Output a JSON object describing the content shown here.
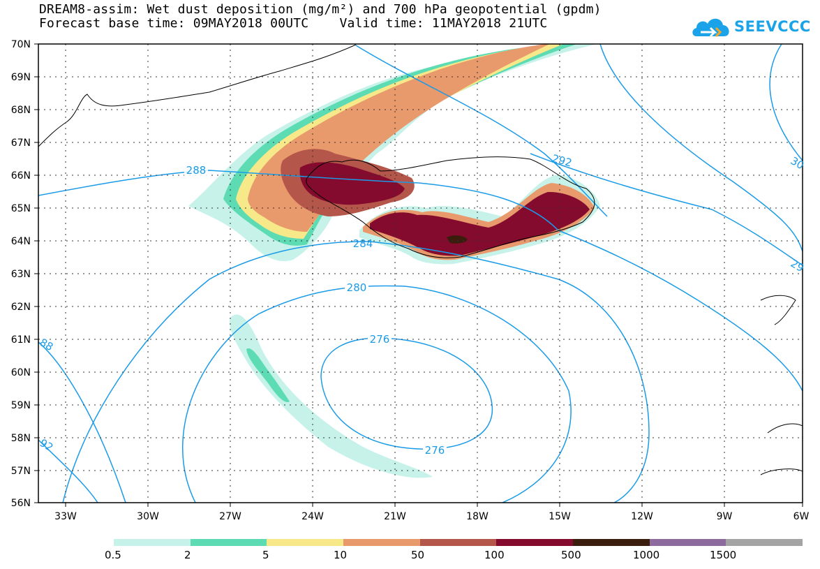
{
  "title_line1": "DREAM8-assim: Wet dust deposition (mg/m²) and 700 hPa geopotential (gpdm)",
  "title_line2": "Forecast base time: 09MAY2018 00UTC    Valid time: 11MAY2018 21UTC",
  "logo_text": "SEEVCCC",
  "logo_icon": "cloud-icon",
  "lat_labels": [
    "70N",
    "69N",
    "68N",
    "67N",
    "66N",
    "65N",
    "64N",
    "63N",
    "62N",
    "61N",
    "60N",
    "59N",
    "58N",
    "57N",
    "56N"
  ],
  "lon_labels": [
    "33W",
    "30W",
    "27W",
    "24W",
    "21W",
    "18W",
    "15W",
    "12W",
    "9W",
    "6W"
  ],
  "contour_labels": {
    "c288": "288",
    "c292": "292",
    "c284": "284",
    "c280": "280",
    "c276a": "276",
    "c276b": "276",
    "c30": "30",
    "c29": "29",
    "c88": "88",
    "c92": "92"
  },
  "legend": {
    "colors": [
      "#c6f2ea",
      "#5ddcb4",
      "#f7e98a",
      "#e89a6c",
      "#b5564a",
      "#850b2e",
      "#3b1d0e",
      "#8e6b9e",
      "#a4a4a4"
    ],
    "labels": [
      "0.5",
      "2",
      "5",
      "10",
      "50",
      "100",
      "500",
      "1000",
      "1500"
    ]
  },
  "colors": {
    "contour": "#1a9be8",
    "coastline": "#000000"
  }
}
